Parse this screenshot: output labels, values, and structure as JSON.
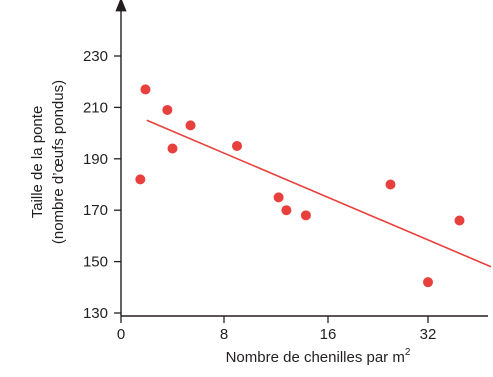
{
  "chart_data": {
    "type": "scatter",
    "title": "",
    "xlabel": "Nombre de chenilles par m",
    "xlabel_superscript": "2",
    "ylabel_line1": "Taille de la ponte",
    "ylabel_line2": "(nombre d’œufs pondus)",
    "x_ticks": [
      0,
      8,
      16,
      32
    ],
    "y_ticks": [
      130,
      150,
      170,
      190,
      210,
      230
    ],
    "grid": false,
    "legend": "none",
    "points": [
      {
        "x": 1.5,
        "y": 182
      },
      {
        "x": 1.9,
        "y": 217
      },
      {
        "x": 3.6,
        "y": 209
      },
      {
        "x": 4.0,
        "y": 194
      },
      {
        "x": 5.4,
        "y": 203
      },
      {
        "x": 9.0,
        "y": 195
      },
      {
        "x": 12.2,
        "y": 175
      },
      {
        "x": 12.8,
        "y": 170
      },
      {
        "x": 14.3,
        "y": 168
      },
      {
        "x": 26.0,
        "y": 180
      },
      {
        "x": 32.0,
        "y": 142
      },
      {
        "x": 38.0,
        "y": 166
      }
    ],
    "trend_line": {
      "x": [
        2.0,
        44.0
      ],
      "y": [
        205,
        148
      ]
    },
    "colors": {
      "points": "#e8403c",
      "trend": "#e8403c",
      "axis": "#231f20"
    }
  }
}
